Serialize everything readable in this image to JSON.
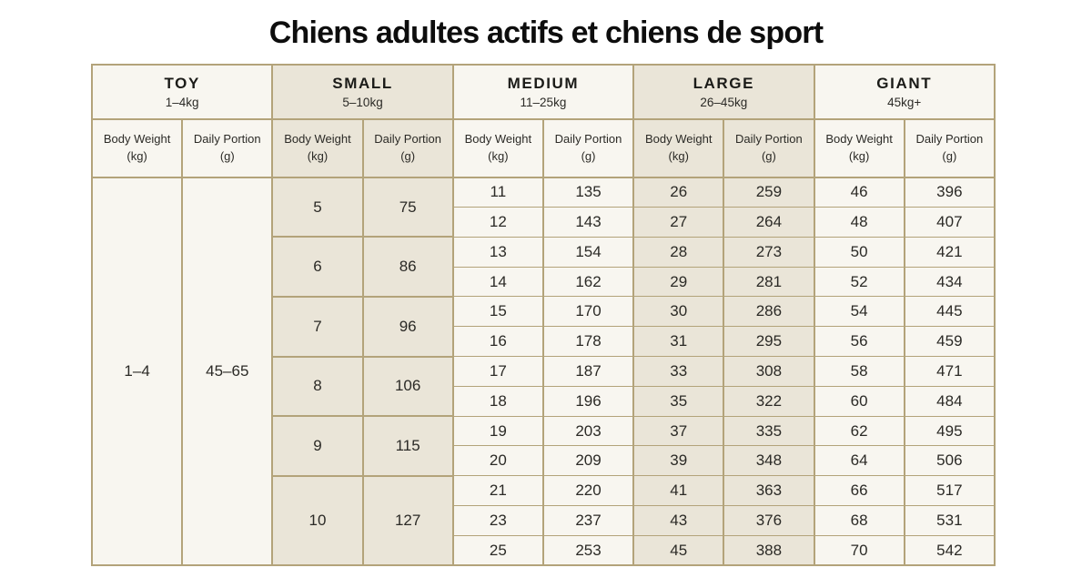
{
  "title": "Chiens adultes actifs et chiens de sport",
  "colors": {
    "page_background": "#ffffff",
    "border": "#b3a37a",
    "cell_light": "#f8f6f0",
    "cell_beige": "#eae5d8",
    "text": "#2b2a26",
    "title_text": "#0d0d0d"
  },
  "chart_data": {
    "type": "table",
    "title": "Chiens adultes actifs et chiens de sport",
    "col_header": {
      "weight": "Body Weight",
      "weight_unit": "(kg)",
      "portion": "Daily Portion",
      "portion_unit": "(g)"
    },
    "groups": [
      {
        "name": "TOY",
        "range": "1–4kg"
      },
      {
        "name": "SMALL",
        "range": "5–10kg"
      },
      {
        "name": "MEDIUM",
        "range": "11–25kg"
      },
      {
        "name": "LARGE",
        "range": "26–45kg"
      },
      {
        "name": "GIANT",
        "range": "45kg+"
      }
    ],
    "toy": {
      "weight": "1–4",
      "portion": "45–65"
    },
    "small": [
      {
        "weight": 5,
        "portion": 75
      },
      {
        "weight": 6,
        "portion": 86
      },
      {
        "weight": 7,
        "portion": 96
      },
      {
        "weight": 8,
        "portion": 106
      },
      {
        "weight": 9,
        "portion": 115
      },
      {
        "weight": 10,
        "portion": 127
      }
    ],
    "rows": [
      {
        "medium": [
          11,
          135
        ],
        "large": [
          26,
          259
        ],
        "giant": [
          46,
          396
        ]
      },
      {
        "medium": [
          12,
          143
        ],
        "large": [
          27,
          264
        ],
        "giant": [
          48,
          407
        ]
      },
      {
        "medium": [
          13,
          154
        ],
        "large": [
          28,
          273
        ],
        "giant": [
          50,
          421
        ]
      },
      {
        "medium": [
          14,
          162
        ],
        "large": [
          29,
          281
        ],
        "giant": [
          52,
          434
        ]
      },
      {
        "medium": [
          15,
          170
        ],
        "large": [
          30,
          286
        ],
        "giant": [
          54,
          445
        ]
      },
      {
        "medium": [
          16,
          178
        ],
        "large": [
          31,
          295
        ],
        "giant": [
          56,
          459
        ]
      },
      {
        "medium": [
          17,
          187
        ],
        "large": [
          33,
          308
        ],
        "giant": [
          58,
          471
        ]
      },
      {
        "medium": [
          18,
          196
        ],
        "large": [
          35,
          322
        ],
        "giant": [
          60,
          484
        ]
      },
      {
        "medium": [
          19,
          203
        ],
        "large": [
          37,
          335
        ],
        "giant": [
          62,
          495
        ]
      },
      {
        "medium": [
          20,
          209
        ],
        "large": [
          39,
          348
        ],
        "giant": [
          64,
          506
        ]
      },
      {
        "medium": [
          21,
          220
        ],
        "large": [
          41,
          363
        ],
        "giant": [
          66,
          517
        ]
      },
      {
        "medium": [
          23,
          237
        ],
        "large": [
          43,
          376
        ],
        "giant": [
          68,
          531
        ]
      },
      {
        "medium": [
          25,
          253
        ],
        "large": [
          45,
          388
        ],
        "giant": [
          70,
          542
        ]
      }
    ]
  }
}
